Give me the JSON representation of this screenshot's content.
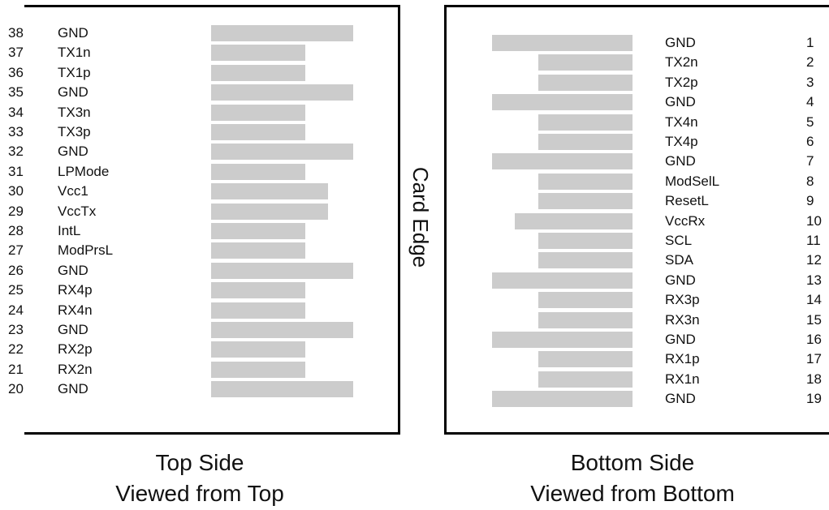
{
  "card_edge_label": "Card Edge",
  "captions": {
    "top": [
      "Top Side",
      "Viewed from Top"
    ],
    "bottom": [
      "Bottom Side",
      "Viewed from Bottom"
    ]
  },
  "top_pins": [
    {
      "num": "38",
      "name": "GND",
      "bar": "long"
    },
    {
      "num": "37",
      "name": "TX1n",
      "bar": "short"
    },
    {
      "num": "36",
      "name": "TX1p",
      "bar": "short"
    },
    {
      "num": "35",
      "name": "GND",
      "bar": "long"
    },
    {
      "num": "34",
      "name": "TX3n",
      "bar": "short"
    },
    {
      "num": "33",
      "name": "TX3p",
      "bar": "short"
    },
    {
      "num": "32",
      "name": "GND",
      "bar": "long"
    },
    {
      "num": "31",
      "name": "LPMode",
      "bar": "short"
    },
    {
      "num": "30",
      "name": "Vcc1",
      "bar": "medium"
    },
    {
      "num": "29",
      "name": "VccTx",
      "bar": "medium"
    },
    {
      "num": "28",
      "name": "IntL",
      "bar": "short"
    },
    {
      "num": "27",
      "name": "ModPrsL",
      "bar": "short"
    },
    {
      "num": "26",
      "name": "GND",
      "bar": "long"
    },
    {
      "num": "25",
      "name": "RX4p",
      "bar": "short"
    },
    {
      "num": "24",
      "name": "RX4n",
      "bar": "short"
    },
    {
      "num": "23",
      "name": "GND",
      "bar": "long"
    },
    {
      "num": "22",
      "name": "RX2p",
      "bar": "short"
    },
    {
      "num": "21",
      "name": "RX2n",
      "bar": "short"
    },
    {
      "num": "20",
      "name": "GND",
      "bar": "long"
    }
  ],
  "bottom_pins": [
    {
      "num": "1",
      "name": "GND",
      "bar": "long"
    },
    {
      "num": "2",
      "name": "TX2n",
      "bar": "short"
    },
    {
      "num": "3",
      "name": "TX2p",
      "bar": "short"
    },
    {
      "num": "4",
      "name": "GND",
      "bar": "long"
    },
    {
      "num": "5",
      "name": "TX4n",
      "bar": "short"
    },
    {
      "num": "6",
      "name": "TX4p",
      "bar": "short"
    },
    {
      "num": "7",
      "name": "GND",
      "bar": "long"
    },
    {
      "num": "8",
      "name": "ModSelL",
      "bar": "short"
    },
    {
      "num": "9",
      "name": "ResetL",
      "bar": "short"
    },
    {
      "num": "10",
      "name": "VccRx",
      "bar": "medium"
    },
    {
      "num": "11",
      "name": "SCL",
      "bar": "short"
    },
    {
      "num": "12",
      "name": "SDA",
      "bar": "short"
    },
    {
      "num": "13",
      "name": "GND",
      "bar": "long"
    },
    {
      "num": "14",
      "name": "RX3p",
      "bar": "short"
    },
    {
      "num": "15",
      "name": "RX3n",
      "bar": "short"
    },
    {
      "num": "16",
      "name": "GND",
      "bar": "long"
    },
    {
      "num": "17",
      "name": "RX1p",
      "bar": "short"
    },
    {
      "num": "18",
      "name": "RX1n",
      "bar": "short"
    },
    {
      "num": "19",
      "name": "GND",
      "bar": "long"
    }
  ]
}
